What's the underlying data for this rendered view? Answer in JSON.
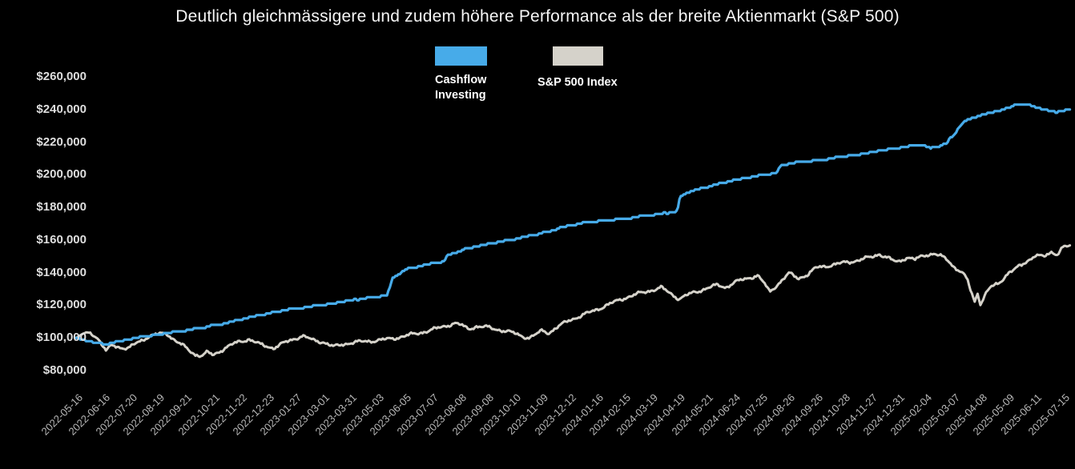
{
  "chart_data": {
    "type": "line",
    "title": "Deutlich gleichmässigere und zudem höhere Performance als der breite Aktienmarkt (S&P 500)",
    "background_color": "#000000",
    "grid": false,
    "legend_position": "top-center",
    "y_axis": {
      "min": 80000,
      "max": 260000,
      "step": 20000,
      "tick_values": [
        80000,
        100000,
        120000,
        140000,
        160000,
        180000,
        200000,
        220000,
        240000,
        260000
      ],
      "tick_labels": [
        "$80,000",
        "$100,000",
        "$120,000",
        "$140,000",
        "$160,000",
        "$180,000",
        "$200,000",
        "$220,000",
        "$240,000",
        "$260,000"
      ]
    },
    "x_axis": {
      "tick_labels": [
        "2022-05-16",
        "2022-06-16",
        "2022-07-20",
        "2022-08-19",
        "2022-09-21",
        "2022-10-21",
        "2022-11-22",
        "2022-12-23",
        "2023-01-27",
        "2023-03-01",
        "2023-03-31",
        "2023-05-03",
        "2023-06-05",
        "2023-07-07",
        "2023-08-08",
        "2023-09-08",
        "2023-10-10",
        "2023-11-09",
        "2023-12-12",
        "2024-01-16",
        "2024-02-15",
        "2024-03-19",
        "2024-04-19",
        "2024-05-21",
        "2024-06-24",
        "2024-07-25",
        "2024-08-26",
        "2024-09-26",
        "2024-10-28",
        "2024-11-27",
        "2024-12-31",
        "2025-02-04",
        "2025-03-07",
        "2025-04-08",
        "2025-05-09",
        "2025-06-11",
        "2025-07-15"
      ]
    },
    "series": [
      {
        "name": "Cashflow Investing",
        "color": "#47abe9",
        "style": "step-like",
        "points": [
          [
            0,
            100000
          ],
          [
            0.4,
            98200
          ],
          [
            0.8,
            96800
          ],
          [
            1.1,
            96300
          ],
          [
            1.5,
            97600
          ],
          [
            2,
            99400
          ],
          [
            2.5,
            100900
          ],
          [
            3,
            102100
          ],
          [
            3.5,
            103400
          ],
          [
            4,
            104600
          ],
          [
            4.5,
            106000
          ],
          [
            5,
            107600
          ],
          [
            5.5,
            109200
          ],
          [
            6,
            111200
          ],
          [
            6.5,
            113200
          ],
          [
            7,
            115100
          ],
          [
            7.5,
            116700
          ],
          [
            8,
            118000
          ],
          [
            8.5,
            119100
          ],
          [
            9,
            120100
          ],
          [
            9.5,
            121500
          ],
          [
            10,
            123000
          ],
          [
            10.5,
            124300
          ],
          [
            11,
            125500
          ],
          [
            11.35,
            126200
          ],
          [
            11.55,
            136800
          ],
          [
            12,
            141800
          ],
          [
            12.5,
            143800
          ],
          [
            13,
            145800
          ],
          [
            13.42,
            146600
          ],
          [
            13.52,
            150300
          ],
          [
            14,
            153400
          ],
          [
            14.5,
            155600
          ],
          [
            15,
            157400
          ],
          [
            15.5,
            159000
          ],
          [
            16,
            160600
          ],
          [
            16.5,
            162300
          ],
          [
            17,
            164100
          ],
          [
            17.5,
            166600
          ],
          [
            18,
            168900
          ],
          [
            18.5,
            170300
          ],
          [
            19,
            171500
          ],
          [
            19.5,
            172400
          ],
          [
            20,
            173200
          ],
          [
            20.5,
            174100
          ],
          [
            21,
            175100
          ],
          [
            21.6,
            176800
          ],
          [
            21.93,
            177600
          ],
          [
            22.03,
            186500
          ],
          [
            22.2,
            188300
          ],
          [
            22.5,
            190300
          ],
          [
            23,
            192600
          ],
          [
            23.5,
            194600
          ],
          [
            24,
            196600
          ],
          [
            24.5,
            198200
          ],
          [
            25,
            199600
          ],
          [
            25.55,
            201200
          ],
          [
            25.7,
            205500
          ],
          [
            26,
            206900
          ],
          [
            26.5,
            207900
          ],
          [
            27,
            208700
          ],
          [
            27.5,
            209900
          ],
          [
            28,
            211100
          ],
          [
            28.5,
            212400
          ],
          [
            29,
            213700
          ],
          [
            29.5,
            215200
          ],
          [
            30,
            216500
          ],
          [
            30.6,
            217800
          ],
          [
            30.9,
            218200
          ],
          [
            31.15,
            216200
          ],
          [
            31.45,
            217500
          ],
          [
            31.75,
            219500
          ],
          [
            32,
            224000
          ],
          [
            32.35,
            232000
          ],
          [
            32.6,
            234200
          ],
          [
            33,
            236600
          ],
          [
            33.5,
            238700
          ],
          [
            34,
            240700
          ],
          [
            34.35,
            243800
          ],
          [
            34.55,
            243300
          ],
          [
            35,
            241600
          ],
          [
            35.5,
            239200
          ],
          [
            35.8,
            238600
          ],
          [
            36,
            239400
          ]
        ]
      },
      {
        "name": "S&P 500 Index",
        "color": "#d5d2ca",
        "style": "volatile",
        "points": [
          [
            0,
            100000
          ],
          [
            0.25,
            102500
          ],
          [
            0.5,
            103600
          ],
          [
            0.8,
            99500
          ],
          [
            1.1,
            91500
          ],
          [
            1.3,
            96000
          ],
          [
            1.55,
            94500
          ],
          [
            1.9,
            93200
          ],
          [
            2.2,
            97000
          ],
          [
            2.6,
            100500
          ],
          [
            3,
            102300
          ],
          [
            3.3,
            103000
          ],
          [
            3.6,
            98500
          ],
          [
            4,
            94000
          ],
          [
            4.35,
            89800
          ],
          [
            4.6,
            89000
          ],
          [
            4.8,
            91200
          ],
          [
            5,
            89500
          ],
          [
            5.3,
            92500
          ],
          [
            5.7,
            96000
          ],
          [
            6,
            98000
          ],
          [
            6.3,
            99200
          ],
          [
            6.7,
            96000
          ],
          [
            7,
            94800
          ],
          [
            7.2,
            93800
          ],
          [
            7.6,
            97000
          ],
          [
            8,
            99800
          ],
          [
            8.25,
            101200
          ],
          [
            8.65,
            98600
          ],
          [
            9,
            97600
          ],
          [
            9.4,
            94500
          ],
          [
            9.7,
            96000
          ],
          [
            10,
            97000
          ],
          [
            10.5,
            97800
          ],
          [
            11,
            98500
          ],
          [
            11.5,
            99500
          ],
          [
            12,
            101200
          ],
          [
            12.5,
            103000
          ],
          [
            13,
            105000
          ],
          [
            13.5,
            107500
          ],
          [
            13.8,
            109000
          ],
          [
            14.05,
            107800
          ],
          [
            14.3,
            105600
          ],
          [
            14.6,
            107000
          ],
          [
            15,
            106500
          ],
          [
            15.5,
            104800
          ],
          [
            16,
            102800
          ],
          [
            16.3,
            101000
          ],
          [
            16.55,
            100000
          ],
          [
            16.8,
            102300
          ],
          [
            17,
            104500
          ],
          [
            17.25,
            103200
          ],
          [
            17.6,
            107000
          ],
          [
            18,
            111000
          ],
          [
            18.5,
            114000
          ],
          [
            19,
            117500
          ],
          [
            19.5,
            121000
          ],
          [
            20,
            124500
          ],
          [
            20.5,
            127000
          ],
          [
            21,
            129300
          ],
          [
            21.35,
            130800
          ],
          [
            21.7,
            127000
          ],
          [
            22,
            124000
          ],
          [
            22.3,
            126300
          ],
          [
            23,
            130500
          ],
          [
            23.4,
            132300
          ],
          [
            23.7,
            131000
          ],
          [
            24,
            134000
          ],
          [
            24.5,
            136500
          ],
          [
            24.85,
            138500
          ],
          [
            25.1,
            133500
          ],
          [
            25.3,
            128000
          ],
          [
            25.6,
            133000
          ],
          [
            26,
            139500
          ],
          [
            26.35,
            136500
          ],
          [
            26.7,
            139000
          ],
          [
            27,
            143000
          ],
          [
            27.5,
            144500
          ],
          [
            28,
            146000
          ],
          [
            28.5,
            147500
          ],
          [
            29,
            149500
          ],
          [
            29.3,
            151500
          ],
          [
            29.6,
            149000
          ],
          [
            29.85,
            147000
          ],
          [
            30,
            146700
          ],
          [
            30.3,
            149500
          ],
          [
            30.6,
            148000
          ],
          [
            31,
            150900
          ],
          [
            31.3,
            151800
          ],
          [
            31.55,
            150000
          ],
          [
            31.8,
            147500
          ],
          [
            32,
            143900
          ],
          [
            32.3,
            140500
          ],
          [
            32.5,
            136000
          ],
          [
            32.65,
            128000
          ],
          [
            32.78,
            122000
          ],
          [
            32.88,
            127500
          ],
          [
            33,
            120800
          ],
          [
            33.15,
            126500
          ],
          [
            33.35,
            131000
          ],
          [
            33.65,
            133000
          ],
          [
            34,
            140000
          ],
          [
            34.5,
            144500
          ],
          [
            35,
            151000
          ],
          [
            35.3,
            149500
          ],
          [
            35.6,
            152500
          ],
          [
            35.8,
            151500
          ],
          [
            36,
            156000
          ]
        ]
      }
    ]
  }
}
